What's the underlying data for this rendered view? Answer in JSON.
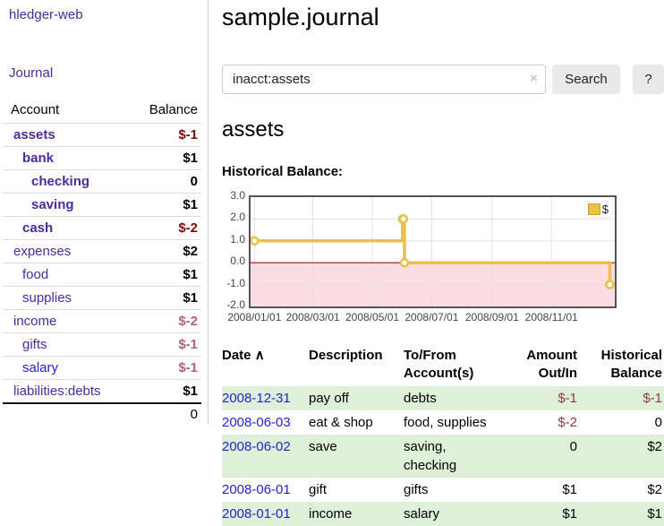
{
  "app": {
    "title": "hledger-web",
    "nav_journal": "Journal"
  },
  "sidebar": {
    "header": {
      "account": "Account",
      "balance": "Balance"
    },
    "accounts": [
      {
        "name": "assets",
        "indent": 0,
        "bold": true,
        "balance": "$-1",
        "balance_class": "neg-strong"
      },
      {
        "name": "bank",
        "indent": 1,
        "bold": true,
        "balance": "$1",
        "balance_class": "pos"
      },
      {
        "name": "checking",
        "indent": 2,
        "bold": true,
        "balance": "0",
        "balance_class": "pos"
      },
      {
        "name": "saving",
        "indent": 2,
        "bold": true,
        "balance": "$1",
        "balance_class": "pos"
      },
      {
        "name": "cash",
        "indent": 1,
        "bold": true,
        "balance": "$-2",
        "balance_class": "neg-strong"
      },
      {
        "name": "expenses",
        "indent": 0,
        "bold": false,
        "balance": "$2",
        "balance_class": "pos"
      },
      {
        "name": "food",
        "indent": 1,
        "bold": false,
        "balance": "$1",
        "balance_class": "pos"
      },
      {
        "name": "supplies",
        "indent": 1,
        "bold": false,
        "balance": "$1",
        "balance_class": "pos"
      },
      {
        "name": "income",
        "indent": 0,
        "bold": false,
        "balance": "$-2",
        "balance_class": "neg-soft"
      },
      {
        "name": "gifts",
        "indent": 1,
        "bold": false,
        "balance": "$-1",
        "balance_class": "neg-soft"
      },
      {
        "name": "salary",
        "indent": 1,
        "bold": false,
        "balance": "$-1",
        "balance_class": "neg-soft",
        "blue": true
      },
      {
        "name": "liabilities:debts",
        "indent": 0,
        "bold": false,
        "balance": "$1",
        "balance_class": "pos"
      }
    ],
    "total": "0"
  },
  "main": {
    "title": "sample.journal",
    "search": {
      "value": "inacct:assets",
      "clear_icon": "×",
      "button": "Search",
      "help_button": "?"
    },
    "account_heading": "assets",
    "chart_label": "Historical Balance:"
  },
  "chart_data": {
    "type": "line",
    "subtype": "step-with-markers",
    "title": "Historical Balance",
    "legend": "$",
    "legend_position": "top-right",
    "grid": true,
    "x_start": "2008-01-01",
    "x_end": "2008-12-31",
    "ylim": [
      -2.0,
      3.0
    ],
    "yticks": [
      {
        "label": "3.0",
        "value": 3
      },
      {
        "label": "2.0",
        "value": 2
      },
      {
        "label": "1.0",
        "value": 1
      },
      {
        "label": "0.0",
        "value": 0
      },
      {
        "label": "-1.0",
        "value": -1
      },
      {
        "label": "-2.0",
        "value": -2
      }
    ],
    "xticks": [
      {
        "label": "2008/01/01",
        "date": "2008-01-01"
      },
      {
        "label": "2008/03/01",
        "date": "2008-03-01"
      },
      {
        "label": "2008/05/01",
        "date": "2008-05-01"
      },
      {
        "label": "2008/07/01",
        "date": "2008-07-01"
      },
      {
        "label": "2008/09/01",
        "date": "2008-09-01"
      },
      {
        "label": "2008/11/01",
        "date": "2008-11-01"
      }
    ],
    "series": [
      {
        "name": "$",
        "points": [
          {
            "date": "2008-01-01",
            "value": 1
          },
          {
            "date": "2008-06-01",
            "value": 2
          },
          {
            "date": "2008-06-02",
            "value": 2
          },
          {
            "date": "2008-06-03",
            "value": 0
          },
          {
            "date": "2008-12-31",
            "value": -1
          }
        ]
      }
    ],
    "colors": {
      "series": "#e9c04a",
      "series_legend": "#edc240",
      "marker_fill": "#fffdf5",
      "negative_fill": "#fbdce0",
      "zero_line": "#8b1a1a",
      "grid": "#e3e3e3",
      "plot_border": "#545454"
    }
  },
  "register": {
    "columns": [
      {
        "label": "Date",
        "sort_icon": "∧"
      },
      {
        "label": "Description"
      },
      {
        "label": "To/From",
        "label2": "Account(s)"
      },
      {
        "label": "Amount",
        "label2": "Out/In"
      },
      {
        "label": "Historical",
        "label2": "Balance"
      }
    ],
    "rows": [
      {
        "date": "2008-12-31",
        "description": "pay off",
        "accounts": "debts",
        "amount": "$-1",
        "amount_neg": true,
        "balance": "$-1",
        "balance_neg": true
      },
      {
        "date": "2008-06-03",
        "description": "eat & shop",
        "accounts": "food, supplies",
        "amount": "$-2",
        "amount_neg": true,
        "balance": "0",
        "balance_neg": false
      },
      {
        "date": "2008-06-02",
        "description": "save",
        "accounts": "saving, checking",
        "amount": "0",
        "amount_neg": false,
        "balance": "$2",
        "balance_neg": false
      },
      {
        "date": "2008-06-01",
        "description": "gift",
        "accounts": "gifts",
        "amount": "$1",
        "amount_neg": false,
        "balance": "$2",
        "balance_neg": false
      },
      {
        "date": "2008-01-01",
        "description": "income",
        "accounts": "salary",
        "amount": "$1",
        "amount_neg": false,
        "balance": "$1",
        "balance_neg": false
      }
    ]
  }
}
